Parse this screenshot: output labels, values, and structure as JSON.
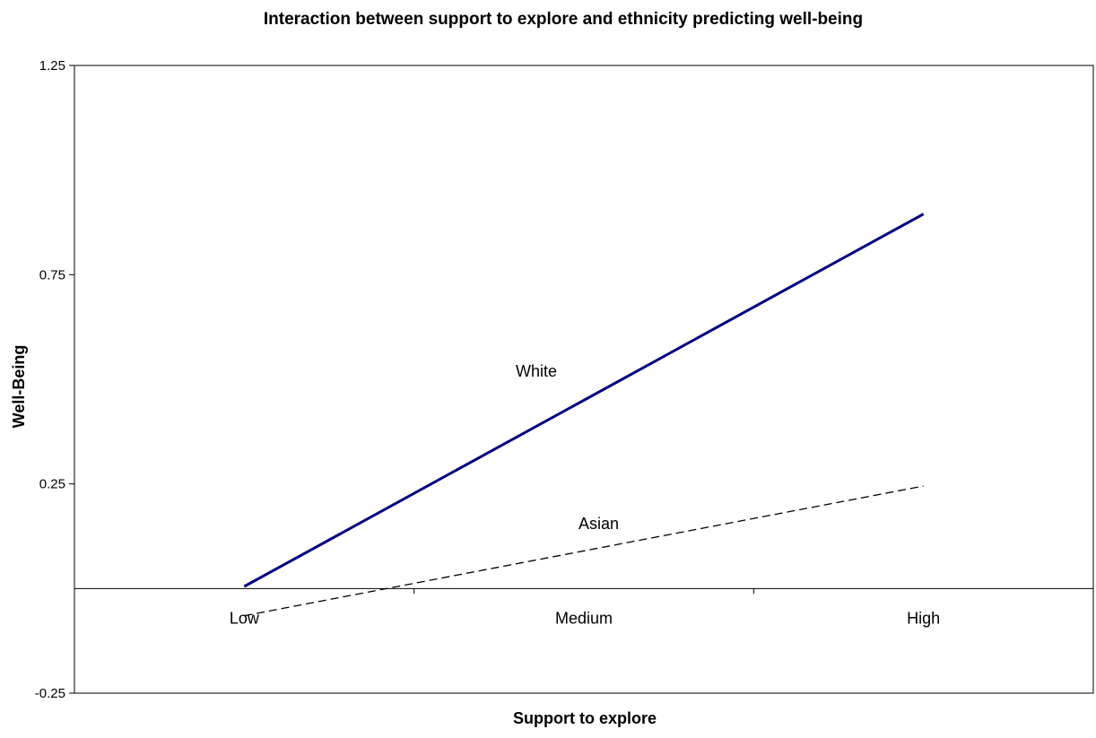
{
  "chart_data": {
    "type": "line",
    "title": "Interaction between support to explore and ethnicity predicting well-being",
    "xlabel": "Support to explore",
    "ylabel": "Well-Being",
    "categories": [
      "Low",
      "Medium",
      "High"
    ],
    "ylim": [
      -0.25,
      1.25
    ],
    "yticks": [
      "-0.25",
      "0.25",
      "0.75",
      "1.25"
    ],
    "grid": false,
    "series": [
      {
        "name": "White",
        "x": [
          "Low",
          "High"
        ],
        "values": [
          0.005,
          0.895
        ],
        "color": "#000080",
        "style": "solid"
      },
      {
        "name": "Asian",
        "x": [
          "Low",
          "High"
        ],
        "values": [
          -0.065,
          0.245
        ],
        "color": "#000000",
        "style": "dashed"
      }
    ]
  }
}
